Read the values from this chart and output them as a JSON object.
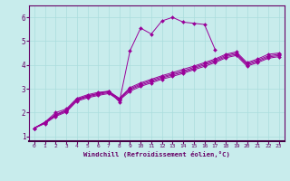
{
  "xlabel": "Windchill (Refroidissement éolien,°C)",
  "background_color": "#c8ecec",
  "line_color": "#990099",
  "spine_color": "#660066",
  "xlim": [
    -0.5,
    23.5
  ],
  "ylim": [
    0.8,
    6.5
  ],
  "xticks": [
    0,
    1,
    2,
    3,
    4,
    5,
    6,
    7,
    8,
    9,
    10,
    11,
    12,
    13,
    14,
    15,
    16,
    17,
    18,
    19,
    20,
    21,
    22,
    23
  ],
  "yticks": [
    1,
    2,
    3,
    4,
    5,
    6
  ],
  "grid_color": "#aadddd",
  "series": [
    {
      "x": [
        0,
        1,
        2,
        3,
        4,
        5,
        6,
        7,
        8,
        9,
        10,
        11,
        12,
        13,
        14,
        15,
        16,
        17
      ],
      "y": [
        1.35,
        1.6,
        1.9,
        2.1,
        2.55,
        2.7,
        2.8,
        2.9,
        2.45,
        4.6,
        5.55,
        5.3,
        5.85,
        6.0,
        5.8,
        5.75,
        5.7,
        4.65
      ]
    },
    {
      "x": [
        0,
        1,
        2,
        3,
        4,
        5,
        6,
        7,
        8,
        9,
        10,
        11,
        12,
        13,
        14,
        15,
        16,
        17,
        18,
        19,
        20,
        21,
        22,
        23
      ],
      "y": [
        1.35,
        1.6,
        2.0,
        2.15,
        2.6,
        2.75,
        2.85,
        2.9,
        2.6,
        3.05,
        3.25,
        3.4,
        3.55,
        3.68,
        3.82,
        3.95,
        4.1,
        4.25,
        4.45,
        4.55,
        4.1,
        4.25,
        4.45,
        4.5
      ]
    },
    {
      "x": [
        0,
        1,
        2,
        3,
        4,
        5,
        6,
        7,
        8,
        9,
        10,
        11,
        12,
        13,
        14,
        15,
        16,
        17,
        18,
        19,
        20,
        21,
        22,
        23
      ],
      "y": [
        1.35,
        1.58,
        1.92,
        2.1,
        2.56,
        2.7,
        2.8,
        2.88,
        2.58,
        3.0,
        3.2,
        3.35,
        3.5,
        3.62,
        3.75,
        3.9,
        4.05,
        4.2,
        4.4,
        4.5,
        4.05,
        4.2,
        4.38,
        4.45
      ]
    },
    {
      "x": [
        0,
        1,
        2,
        3,
        4,
        5,
        6,
        7,
        8,
        9,
        10,
        11,
        12,
        13,
        14,
        15,
        16,
        17,
        18,
        19,
        20,
        21,
        22,
        23
      ],
      "y": [
        1.35,
        1.56,
        1.88,
        2.06,
        2.52,
        2.66,
        2.76,
        2.84,
        2.56,
        2.96,
        3.15,
        3.3,
        3.45,
        3.58,
        3.7,
        3.85,
        4.0,
        4.15,
        4.35,
        4.45,
        4.0,
        4.15,
        4.33,
        4.4
      ]
    },
    {
      "x": [
        0,
        1,
        2,
        3,
        4,
        5,
        6,
        7,
        8,
        9,
        10,
        11,
        12,
        13,
        14,
        15,
        16,
        17,
        18,
        19,
        20,
        21,
        22,
        23
      ],
      "y": [
        1.35,
        1.54,
        1.84,
        2.02,
        2.48,
        2.62,
        2.72,
        2.8,
        2.52,
        2.9,
        3.1,
        3.25,
        3.4,
        3.52,
        3.65,
        3.8,
        3.94,
        4.1,
        4.3,
        4.4,
        3.95,
        4.1,
        4.28,
        4.35
      ]
    }
  ]
}
